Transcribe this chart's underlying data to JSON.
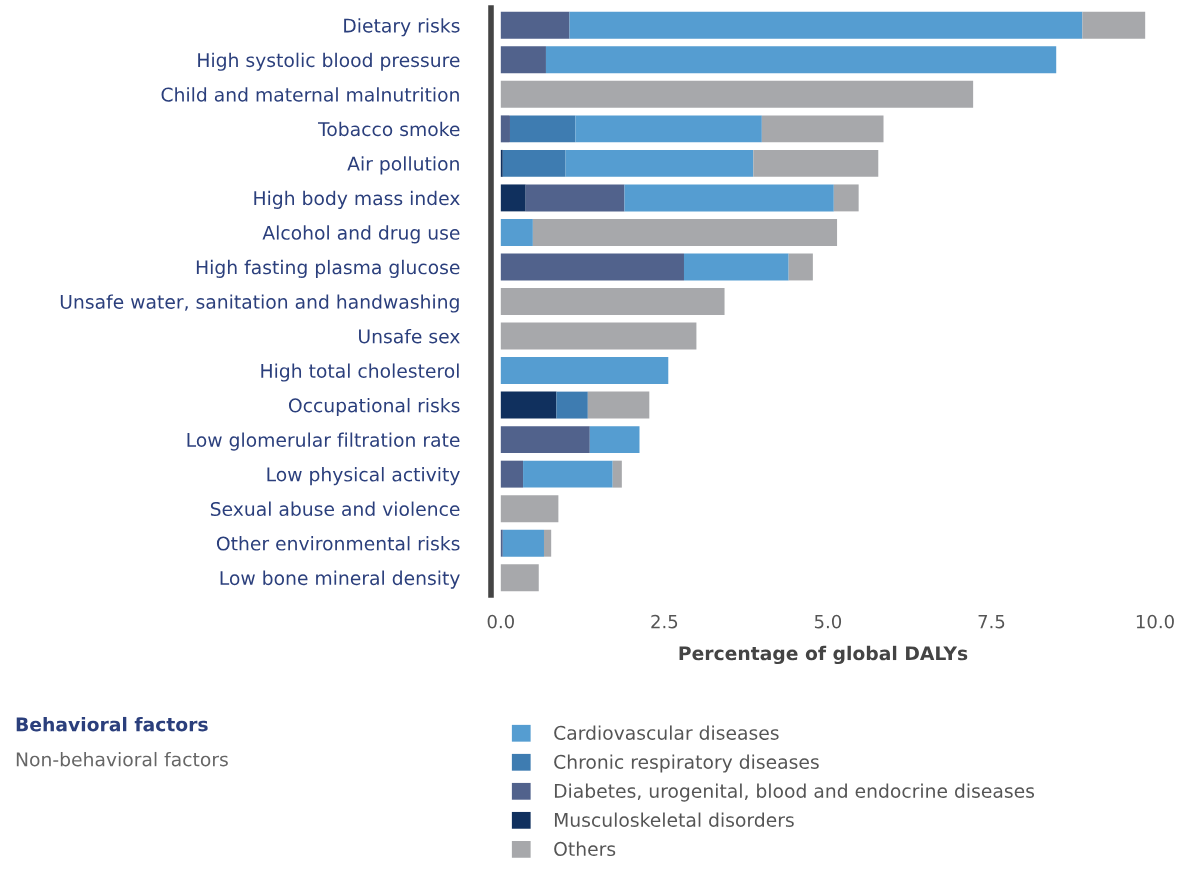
{
  "chart_data": {
    "type": "bar",
    "orientation": "horizontal",
    "stacked": true,
    "xlabel": "Percentage of global DALYs",
    "categories": [
      "Dietary risks",
      "High systolic blood pressure",
      "Child and maternal malnutrition",
      "Tobacco smoke",
      "Air pollution",
      "High body mass index",
      "Alcohol and drug use",
      "High fasting plasma glucose",
      "Unsafe water, sanitation and handwashing",
      "Unsafe sex",
      "High total cholesterol",
      "Occupational risks",
      "Low glomerular filtration rate",
      "Low physical activity",
      "Sexual abuse and violence",
      "Other environmental risks",
      "Low bone mineral density"
    ],
    "series": [
      {
        "name": "Musculoskeletal disorders",
        "color": "#10305e",
        "values": [
          0,
          0,
          0,
          0,
          0.03,
          0.38,
          0,
          0,
          0,
          0,
          0,
          0.85,
          0,
          0,
          0,
          0,
          0
        ]
      },
      {
        "name": "Diabetes, urogenital, blood and endocrine diseases",
        "color": "#51628c",
        "values": [
          1.05,
          0.69,
          0,
          0.14,
          0,
          1.51,
          0,
          2.8,
          0,
          0,
          0,
          0,
          1.36,
          0.34,
          0,
          0.03,
          0
        ]
      },
      {
        "name": "Chronic respiratory diseases",
        "color": "#3e7cb1",
        "values": [
          0,
          0,
          0,
          1.0,
          0.96,
          0,
          0,
          0,
          0,
          0,
          0,
          0.48,
          0,
          0,
          0,
          0,
          0
        ]
      },
      {
        "name": "Cardiovascular diseases",
        "color": "#559dd1",
        "values": [
          7.84,
          7.8,
          0,
          2.85,
          2.87,
          3.2,
          0.49,
          1.6,
          0,
          0,
          2.56,
          0,
          0.76,
          1.37,
          0,
          0.63,
          0
        ]
      },
      {
        "name": "Others",
        "color": "#a7a8ab",
        "values": [
          0.96,
          0,
          7.22,
          1.86,
          1.91,
          0.38,
          4.65,
          0.37,
          3.42,
          2.99,
          0,
          0.94,
          0,
          0.14,
          0.88,
          0.11,
          0.58
        ]
      }
    ],
    "xlim": [
      -0.15,
      10
    ],
    "xticks": [
      {
        "value": 0,
        "label": "0.0"
      },
      2.5,
      {
        "value": 5,
        "label": "5.0"
      },
      7.5,
      {
        "value": 10,
        "label": "10.0"
      }
    ],
    "legend": "bottom",
    "annotations": [
      "Behavioral factors",
      "Non-behavioral factors"
    ]
  }
}
